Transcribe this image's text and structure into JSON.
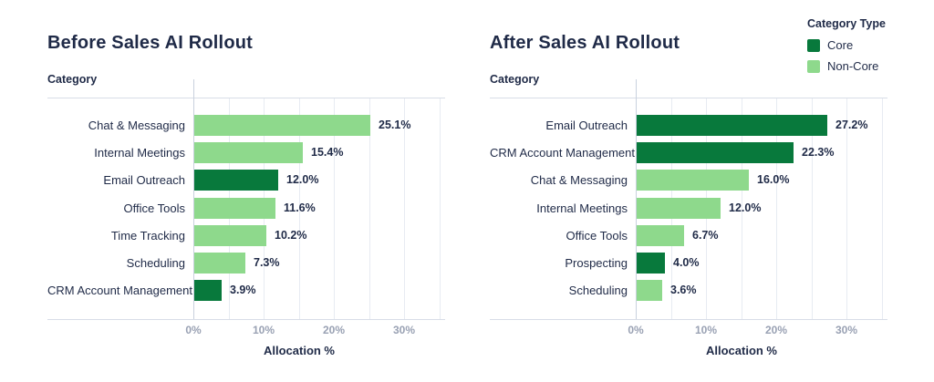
{
  "legend": {
    "title": "Category Type",
    "items": [
      {
        "label": "Core",
        "type": "core",
        "color": "#08793C"
      },
      {
        "label": "Non-Core",
        "type": "non_core",
        "color": "#8ED98C"
      }
    ]
  },
  "colors": {
    "core": "#08793C",
    "non_core": "#8ED98C",
    "text": "#1F2A47",
    "tick_label": "#99A1B3",
    "gridline": "#E7EBF2",
    "axis_line": "#D8DDE7"
  },
  "chart_data": [
    {
      "type": "bar",
      "orientation": "horizontal",
      "title": "Before Sales AI Rollout",
      "ylabel": "Category",
      "xlabel": "Allocation %",
      "xlim": [
        0,
        35.8
      ],
      "xticks": [
        0,
        10,
        20,
        30
      ],
      "xtick_labels": [
        "0%",
        "10%",
        "20%",
        "30%"
      ],
      "gridline_step_pct": 5,
      "grid": true,
      "legend_position": "top-right",
      "categories": [
        "Chat & Messaging",
        "Internal Meetings",
        "Email Outreach",
        "Office Tools",
        "Time Tracking",
        "Scheduling",
        "CRM Account Management"
      ],
      "values": [
        25.1,
        15.4,
        12.0,
        11.6,
        10.2,
        7.3,
        3.9
      ],
      "value_labels": [
        "25.1%",
        "15.4%",
        "12.0%",
        "11.6%",
        "10.2%",
        "7.3%",
        "3.9%"
      ],
      "series_types": [
        "non_core",
        "non_core",
        "core",
        "non_core",
        "non_core",
        "non_core",
        "core"
      ]
    },
    {
      "type": "bar",
      "orientation": "horizontal",
      "title": "After Sales AI Rollout",
      "ylabel": "Category",
      "xlabel": "Allocation %",
      "xlim": [
        0,
        35.8
      ],
      "xticks": [
        0,
        10,
        20,
        30
      ],
      "xtick_labels": [
        "0%",
        "10%",
        "20%",
        "30%"
      ],
      "gridline_step_pct": 5,
      "grid": true,
      "legend_position": "top-right",
      "categories": [
        "Email Outreach",
        "CRM Account Management",
        "Chat & Messaging",
        "Internal Meetings",
        "Office Tools",
        "Prospecting",
        "Scheduling"
      ],
      "values": [
        27.2,
        22.3,
        16.0,
        12.0,
        6.7,
        4.0,
        3.6
      ],
      "value_labels": [
        "27.2%",
        "22.3%",
        "16.0%",
        "12.0%",
        "6.7%",
        "4.0%",
        "3.6%"
      ],
      "series_types": [
        "core",
        "core",
        "non_core",
        "non_core",
        "non_core",
        "core",
        "non_core"
      ]
    }
  ]
}
